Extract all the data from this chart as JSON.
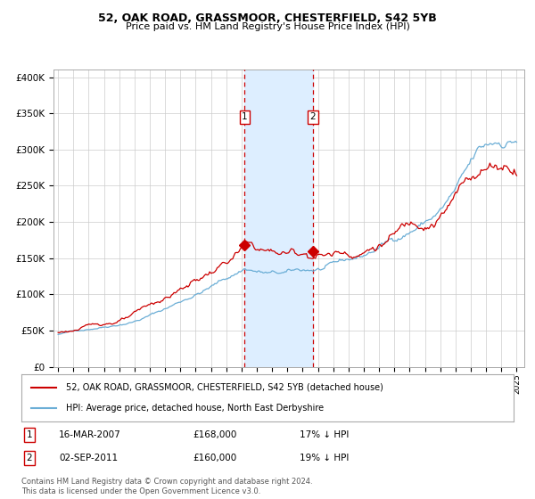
{
  "title1": "52, OAK ROAD, GRASSMOOR, CHESTERFIELD, S42 5YB",
  "title2": "Price paid vs. HM Land Registry's House Price Index (HPI)",
  "legend1": "52, OAK ROAD, GRASSMOOR, CHESTERFIELD, S42 5YB (detached house)",
  "legend2": "HPI: Average price, detached house, North East Derbyshire",
  "annotation1_date": "16-MAR-2007",
  "annotation1_price": "£168,000",
  "annotation1_hpi": "17% ↓ HPI",
  "annotation2_date": "02-SEP-2011",
  "annotation2_price": "£160,000",
  "annotation2_hpi": "19% ↓ HPI",
  "sale1_year": 2007.21,
  "sale1_value": 168000,
  "sale2_year": 2011.67,
  "sale2_value": 160000,
  "ylabel_values": [
    0,
    50000,
    100000,
    150000,
    200000,
    250000,
    300000,
    350000,
    400000
  ],
  "ylabel_labels": [
    "£0",
    "£50K",
    "£100K",
    "£150K",
    "£200K",
    "£250K",
    "£300K",
    "£350K",
    "£400K"
  ],
  "hpi_color": "#6baed6",
  "property_color": "#cc0000",
  "shade_color": "#ddeeff",
  "vline_color": "#cc0000",
  "bg_color": "#ffffff",
  "grid_color": "#cccccc",
  "footnote": "Contains HM Land Registry data © Crown copyright and database right 2024.\nThis data is licensed under the Open Government Licence v3.0."
}
